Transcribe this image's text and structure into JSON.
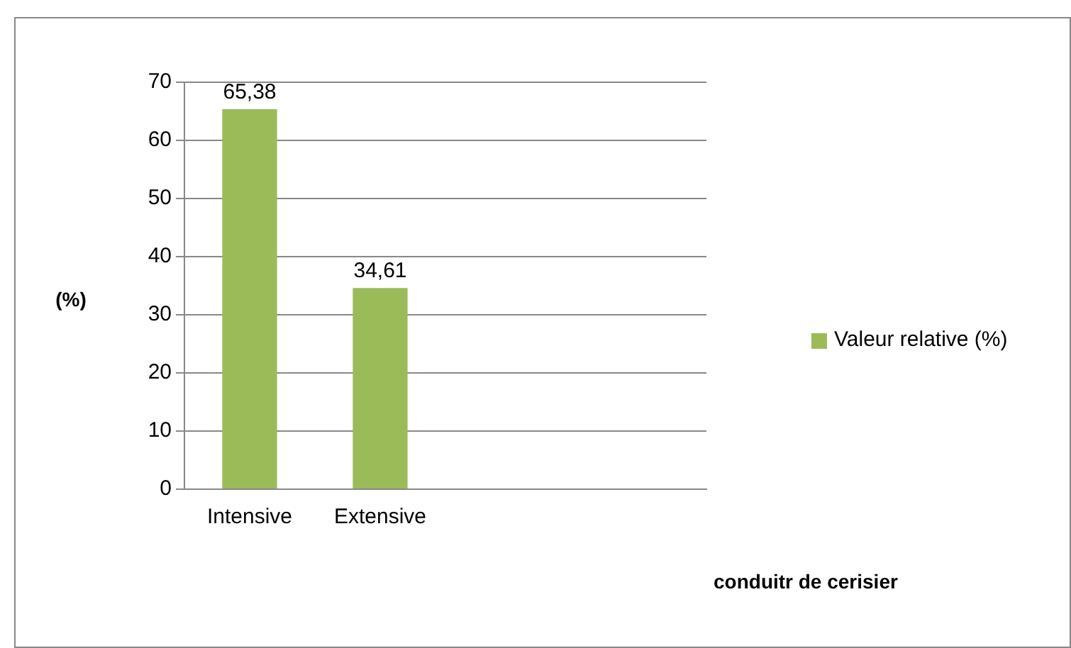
{
  "chart_data": {
    "type": "bar",
    "categories": [
      "Intensive",
      "Extensive",
      null,
      null
    ],
    "series": [
      {
        "name": "Valeur relative (%)",
        "color": "#9bbb59",
        "values": [
          65.38,
          34.61,
          null,
          null
        ],
        "value_labels": [
          "65,38",
          "34,61",
          null,
          null
        ]
      }
    ],
    "ylabel": "(%)",
    "xlabel": "conduitr de cerisier",
    "ylim": [
      0,
      70
    ],
    "yticks": [
      0,
      10,
      20,
      30,
      40,
      50,
      60,
      70
    ],
    "grid": "y",
    "legend": "right"
  }
}
